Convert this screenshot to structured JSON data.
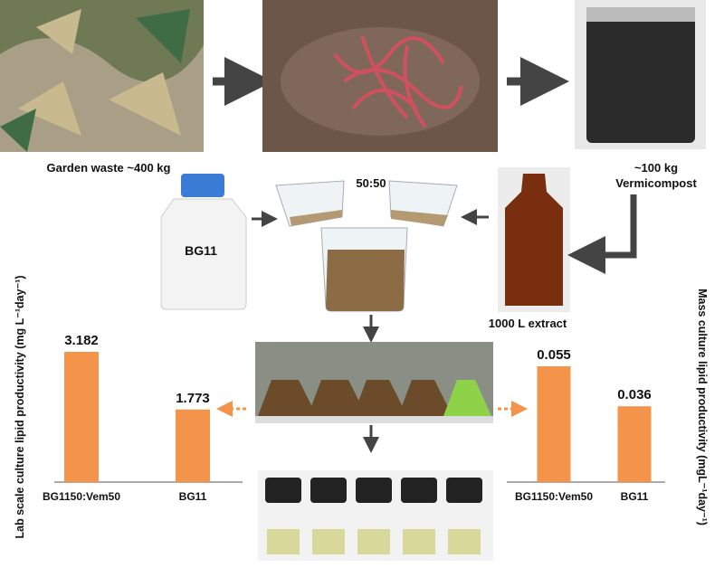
{
  "labels": {
    "garden_waste": "Garden waste ~400 kg",
    "compost_amount": "~100 kg",
    "compost_name": "Vermicompost",
    "ratio": "50:50",
    "medium": "BG11",
    "extract": "1000 L extract"
  },
  "chart_data": [
    {
      "type": "bar",
      "y_label": "Lab scale culture lipid productivity (mg L⁻¹day⁻¹)",
      "categories": [
        "BG1150:Vem50",
        "BG11"
      ],
      "values": [
        3.182,
        1.773
      ],
      "color": "#f4934a"
    },
    {
      "type": "bar",
      "y_label": "Mass culture lipid productivity (mgL⁻¹day⁻¹)",
      "categories": [
        "BG1150:Vem50",
        "BG11"
      ],
      "values": [
        0.055,
        0.036
      ],
      "color": "#f4934a"
    }
  ]
}
